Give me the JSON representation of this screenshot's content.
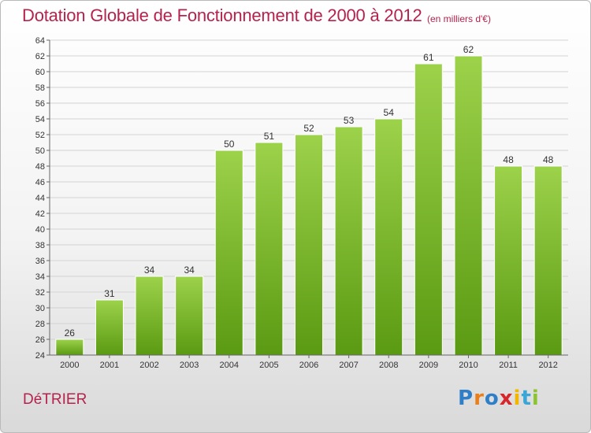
{
  "header": {
    "title": "Dotation Globale de Fonctionnement de 2000 à 2012",
    "units": "(en milliers d'€)"
  },
  "footer": {
    "city": "DéTRIER",
    "logo": "Proxiti"
  },
  "colors": {
    "title": "#b5224d",
    "bar_top": "#9dd24b",
    "bar_bottom": "#5a9a12",
    "axis": "#666666",
    "grid": "#d3d3d3",
    "logo": [
      "#2f7fc8",
      "#e87f1a",
      "#2f7fc8",
      "#d6262b",
      "#f2b600",
      "#3aa6d8",
      "#8bc42f"
    ]
  },
  "chart_data": {
    "type": "bar",
    "title": "Dotation Globale de Fonctionnement de 2000 à 2012",
    "subtitle": "(en milliers d'€)",
    "xlabel": "",
    "ylabel": "",
    "categories": [
      "2000",
      "2001",
      "2002",
      "2003",
      "2004",
      "2005",
      "2006",
      "2007",
      "2008",
      "2009",
      "2010",
      "2011",
      "2012"
    ],
    "values": [
      26,
      31,
      34,
      34,
      50,
      51,
      52,
      53,
      54,
      61,
      62,
      48,
      48
    ],
    "ylim": [
      24,
      64
    ],
    "yticks": [
      24,
      26,
      28,
      30,
      32,
      34,
      36,
      38,
      40,
      42,
      44,
      46,
      48,
      50,
      52,
      54,
      56,
      58,
      60,
      62,
      64
    ],
    "grid": true,
    "data_labels": true
  }
}
